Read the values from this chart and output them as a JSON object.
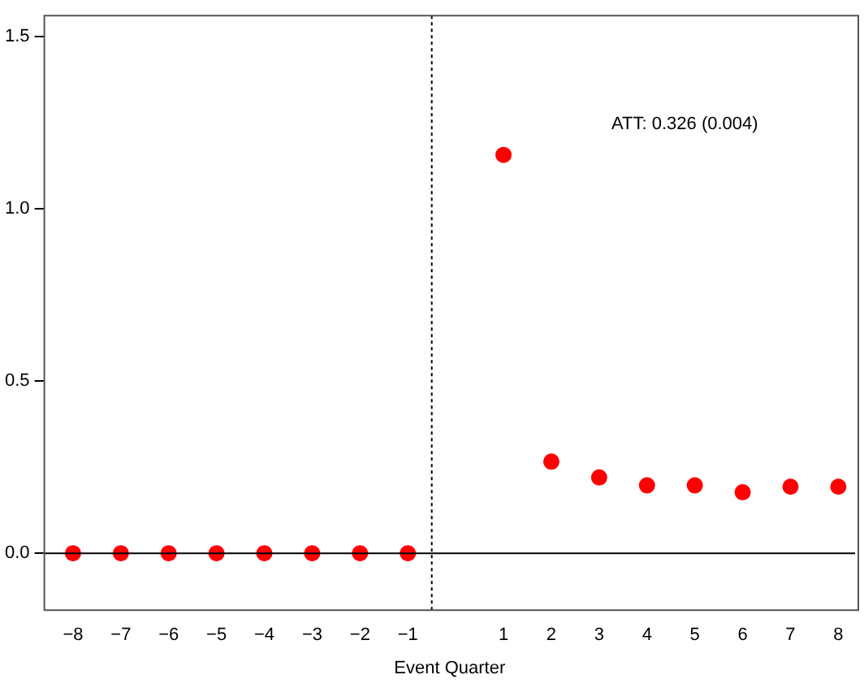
{
  "chart_data": {
    "type": "scatter",
    "xlabel": "Event Quarter",
    "x": [
      -8,
      -7,
      -6,
      -5,
      -4,
      -3,
      -2,
      -1,
      1,
      2,
      3,
      4,
      5,
      6,
      7,
      8
    ],
    "series": [
      {
        "color": "#ff0000",
        "values": [
          0,
          0,
          0,
          0,
          0,
          0,
          0,
          0,
          1.156,
          0.266,
          0.22,
          0.197,
          0.197,
          0.177,
          0.193,
          0.193
        ],
        "errors": [
          null,
          null,
          null,
          null,
          null,
          null,
          null,
          null,
          0.005,
          0.015,
          0.012,
          0.01,
          0.01,
          0.01,
          0.01,
          0.01
        ]
      }
    ],
    "xlim": [
      -8.6,
      8.35
    ],
    "xticks": [
      -8,
      -7,
      -6,
      -5,
      -4,
      -3,
      -2,
      -1,
      1,
      2,
      3,
      4,
      5,
      6,
      7,
      8
    ],
    "ylim": [
      -0.165,
      1.56
    ],
    "yticks": [
      {
        "value": 0,
        "label": "0.0"
      },
      {
        "value": 0.5,
        "label": "0.5"
      },
      {
        "value": 1,
        "label": "1.0"
      },
      {
        "value": 1.5,
        "label": "1.5"
      }
    ],
    "ref_lines": [
      {
        "axis": "x",
        "value": -0.5,
        "color": "#000000",
        "line_style": "dotted"
      },
      {
        "axis": "y",
        "value": 0,
        "color": "#000000",
        "line_style": "solid"
      }
    ],
    "annotations": [
      "ATT: 0.326 (0.004)"
    ],
    "marker": "circle",
    "grid": false,
    "legend": false
  }
}
